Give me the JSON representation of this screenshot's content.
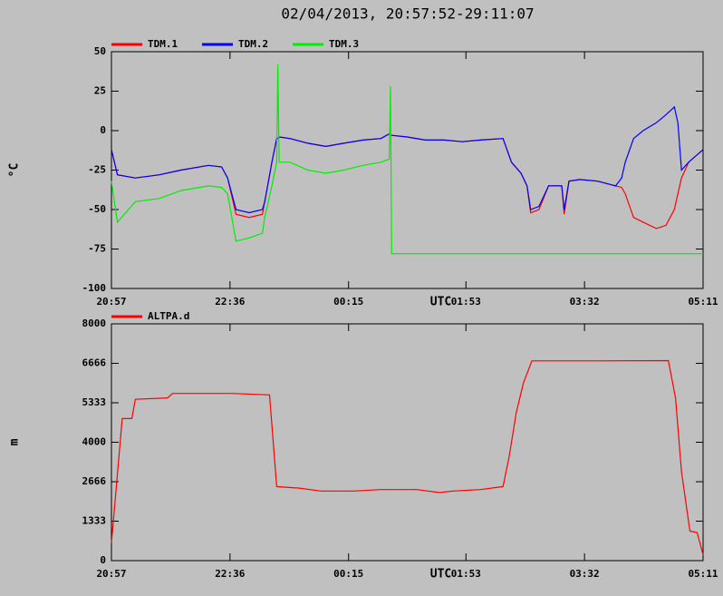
{
  "title": "02/04/2013, 20:57:52-29:11:07",
  "chart_data": [
    {
      "type": "line",
      "y_label": "°C",
      "x_label": "UTC",
      "grid": false,
      "x": [
        "20:57",
        "21:02",
        "21:17",
        "21:37",
        "21:55",
        "22:18",
        "22:29",
        "22:34",
        "22:41",
        "22:52",
        "23:03",
        "23:05",
        "23:11",
        "23:15",
        "23:16",
        "23:17",
        "23:26",
        "23:41",
        "23:56",
        "00:11",
        "00:27",
        "00:42",
        "00:49",
        "00:50",
        "00:51",
        "01:04",
        "01:19",
        "01:35",
        "01:50",
        "02:05",
        "02:24",
        "02:31",
        "02:39",
        "02:44",
        "02:47",
        "02:54",
        "03:02",
        "03:13",
        "03:15",
        "03:19",
        "03:28",
        "03:43",
        "03:58",
        "04:03",
        "04:06",
        "04:13",
        "04:21",
        "04:32",
        "04:40",
        "04:47",
        "04:50",
        "04:53",
        "04:59",
        "05:11"
      ],
      "xlim": [
        "20:57",
        "05:11"
      ],
      "xticks": [
        "20:57",
        "22:36",
        "00:15",
        "01:53",
        "03:32",
        "05:11"
      ],
      "ylim": [
        -100,
        50
      ],
      "yticks": [
        50,
        25,
        0,
        -25,
        -50,
        -75,
        -100
      ],
      "series": [
        {
          "name": "TDM.1",
          "color": "#ff0000",
          "values": [
            -12,
            -28,
            -30,
            -28,
            -25,
            -22,
            -23,
            -30,
            -53,
            -55,
            -53,
            -45,
            -20,
            -5,
            -5,
            -4,
            -5,
            -8,
            -10,
            -8,
            -6,
            -5,
            -2,
            -3,
            -3,
            -4,
            -6,
            -6,
            -7,
            -6,
            -5,
            -20,
            -27,
            -35,
            -52,
            -50,
            -35,
            -35,
            -53,
            -32,
            -31,
            -32,
            -35,
            -36,
            -40,
            -55,
            -58,
            -62,
            -60,
            -50,
            -40,
            -30,
            -20,
            -12
          ]
        },
        {
          "name": "TDM.2",
          "color": "#0000ff",
          "values": [
            -12,
            -28,
            -30,
            -28,
            -25,
            -22,
            -23,
            -30,
            -50,
            -52,
            -50,
            -45,
            -20,
            -5,
            -5,
            -4,
            -5,
            -8,
            -10,
            -8,
            -6,
            -5,
            -2,
            -3,
            -3,
            -4,
            -6,
            -6,
            -7,
            -6,
            -5,
            -20,
            -27,
            -35,
            -50,
            -48,
            -35,
            -35,
            -50,
            -32,
            -31,
            -32,
            -35,
            -30,
            -20,
            -5,
            0,
            5,
            10,
            15,
            5,
            -25,
            -20,
            -12
          ]
        },
        {
          "name": "TDM.3",
          "color": "#00ee00",
          "values": [
            -32,
            -58,
            -45,
            -43,
            -38,
            -35,
            -36,
            -40,
            -70,
            -68,
            -65,
            -55,
            -35,
            -20,
            42,
            -20,
            -20,
            -25,
            -27,
            -25,
            -22,
            -20,
            -18,
            28,
            -78,
            -78,
            -78,
            -78,
            -78,
            -78,
            -78,
            -78,
            -78,
            -78,
            -78,
            -78,
            -78,
            -78,
            -78,
            -78,
            -78,
            -78,
            -78,
            -78,
            -78,
            -78,
            -78,
            -78,
            -78,
            -78,
            -78,
            -78,
            -78,
            -78
          ]
        }
      ]
    },
    {
      "type": "line",
      "y_label": "m",
      "x_label": "UTC",
      "grid": false,
      "x": [
        "20:57",
        "21:00",
        "21:06",
        "21:14",
        "21:17",
        "21:44",
        "21:48",
        "22:37",
        "23:09",
        "23:15",
        "23:34",
        "23:52",
        "00:19",
        "00:42",
        "01:12",
        "01:31",
        "01:42",
        "02:05",
        "02:24",
        "02:29",
        "02:35",
        "02:41",
        "02:48",
        "03:43",
        "04:42",
        "04:48",
        "04:53",
        "05:00",
        "05:06",
        "05:11"
      ],
      "xlim": [
        "20:57",
        "05:11"
      ],
      "xticks": [
        "20:57",
        "22:36",
        "00:15",
        "01:53",
        "03:32",
        "05:11"
      ],
      "ylim": [
        0,
        8000
      ],
      "yticks": [
        0,
        1333,
        2666,
        4000,
        5333,
        6666,
        8000
      ],
      "series": [
        {
          "name": "ALTPA.d",
          "color": "#ff0000",
          "values": [
            600,
            2000,
            4800,
            4800,
            5450,
            5500,
            5650,
            5650,
            5600,
            2500,
            2450,
            2350,
            2350,
            2400,
            2400,
            2300,
            2350,
            2400,
            2500,
            3500,
            5000,
            6000,
            6750,
            6750,
            6760,
            5500,
            3000,
            1000,
            950,
            200
          ]
        }
      ]
    }
  ]
}
